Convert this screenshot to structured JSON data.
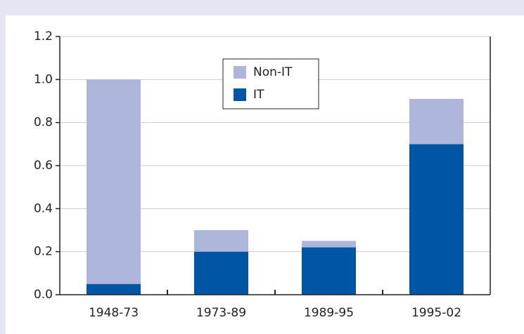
{
  "chart_data": {
    "type": "stacked_bar",
    "categories": [
      "1948-73",
      "1973-89",
      "1989-95",
      "1995-02"
    ],
    "series": [
      {
        "name": "IT",
        "color": "#0055a5",
        "values": [
          0.05,
          0.2,
          0.22,
          0.7
        ]
      },
      {
        "name": "Non-IT",
        "color": "#aeb6dc",
        "values": [
          0.95,
          0.1,
          0.03,
          0.21
        ]
      }
    ],
    "ylim": [
      0,
      1.2
    ],
    "yticks": [
      {
        "value": 0,
        "label": "0.0"
      },
      0.2,
      0.4,
      0.6,
      0.8,
      {
        "value": 1,
        "label": "1.0"
      },
      1.2
    ],
    "grid": true,
    "legend": "top"
  }
}
